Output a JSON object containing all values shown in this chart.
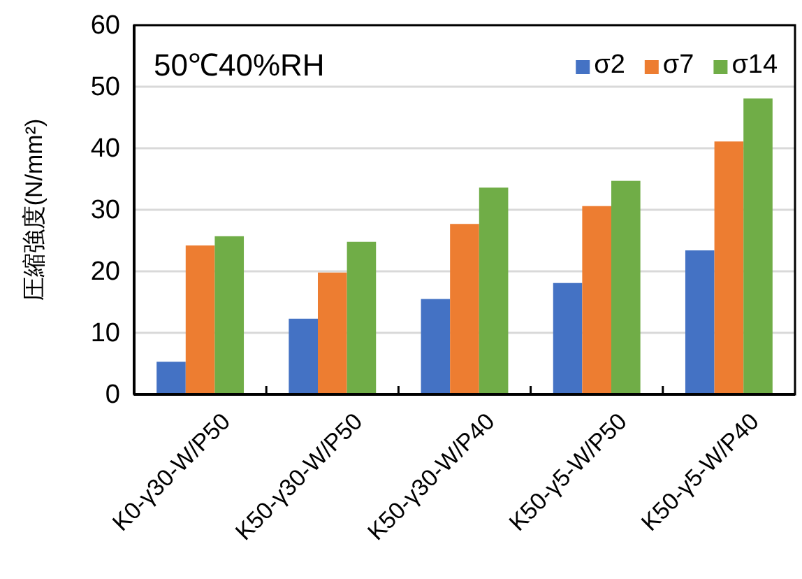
{
  "chart_data": {
    "type": "bar",
    "ylabel": "圧縮強度(N/mm²)",
    "annotations": [
      "50℃40%RH"
    ],
    "categories": [
      "K0-γ30-W/P50",
      "K50-γ30-W/P50",
      "K50-γ30-W/P40",
      "K50-γ5-W/P50",
      "K50-γ5-W/P40"
    ],
    "series": [
      {
        "name": "σ2",
        "color": "#4472c4",
        "values": [
          5.3,
          12.3,
          15.5,
          18.1,
          23.4
        ]
      },
      {
        "name": "σ7",
        "color": "#ed7d31",
        "values": [
          24.2,
          19.8,
          27.7,
          30.6,
          41.1
        ]
      },
      {
        "name": "σ14",
        "color": "#70ad47",
        "values": [
          25.7,
          24.8,
          33.6,
          34.7,
          48.1
        ]
      }
    ],
    "ylim": [
      0,
      60
    ],
    "yticks": [
      0,
      10,
      20,
      30,
      40,
      50,
      60
    ],
    "grid": "y",
    "legend": "top right"
  }
}
